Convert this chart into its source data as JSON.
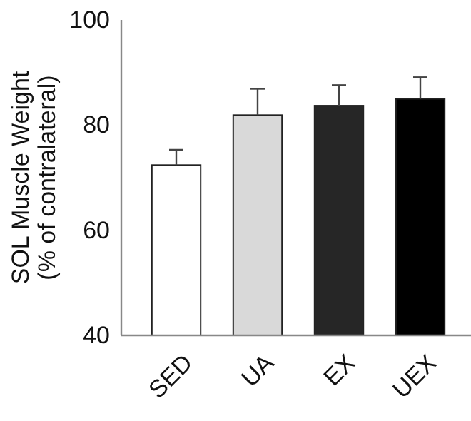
{
  "chart_data": {
    "type": "bar",
    "ylabel": "SOL Muscle Weight\n(% of contralateral)",
    "categories": [
      "SED",
      "UA",
      "EX",
      "UEX"
    ],
    "values": [
      72.4,
      81.9,
      83.7,
      85.0
    ],
    "colors": [
      "#ffffff",
      "#d9d9d9",
      "#262626",
      "#000000"
    ],
    "errors": [
      [
        72.4,
        75.3
      ],
      [
        81.9,
        86.9
      ],
      [
        83.7,
        87.6
      ],
      [
        85.0,
        89.1
      ]
    ],
    "ylim": [
      40,
      100
    ],
    "yticks": [
      40,
      60,
      80,
      100
    ]
  }
}
